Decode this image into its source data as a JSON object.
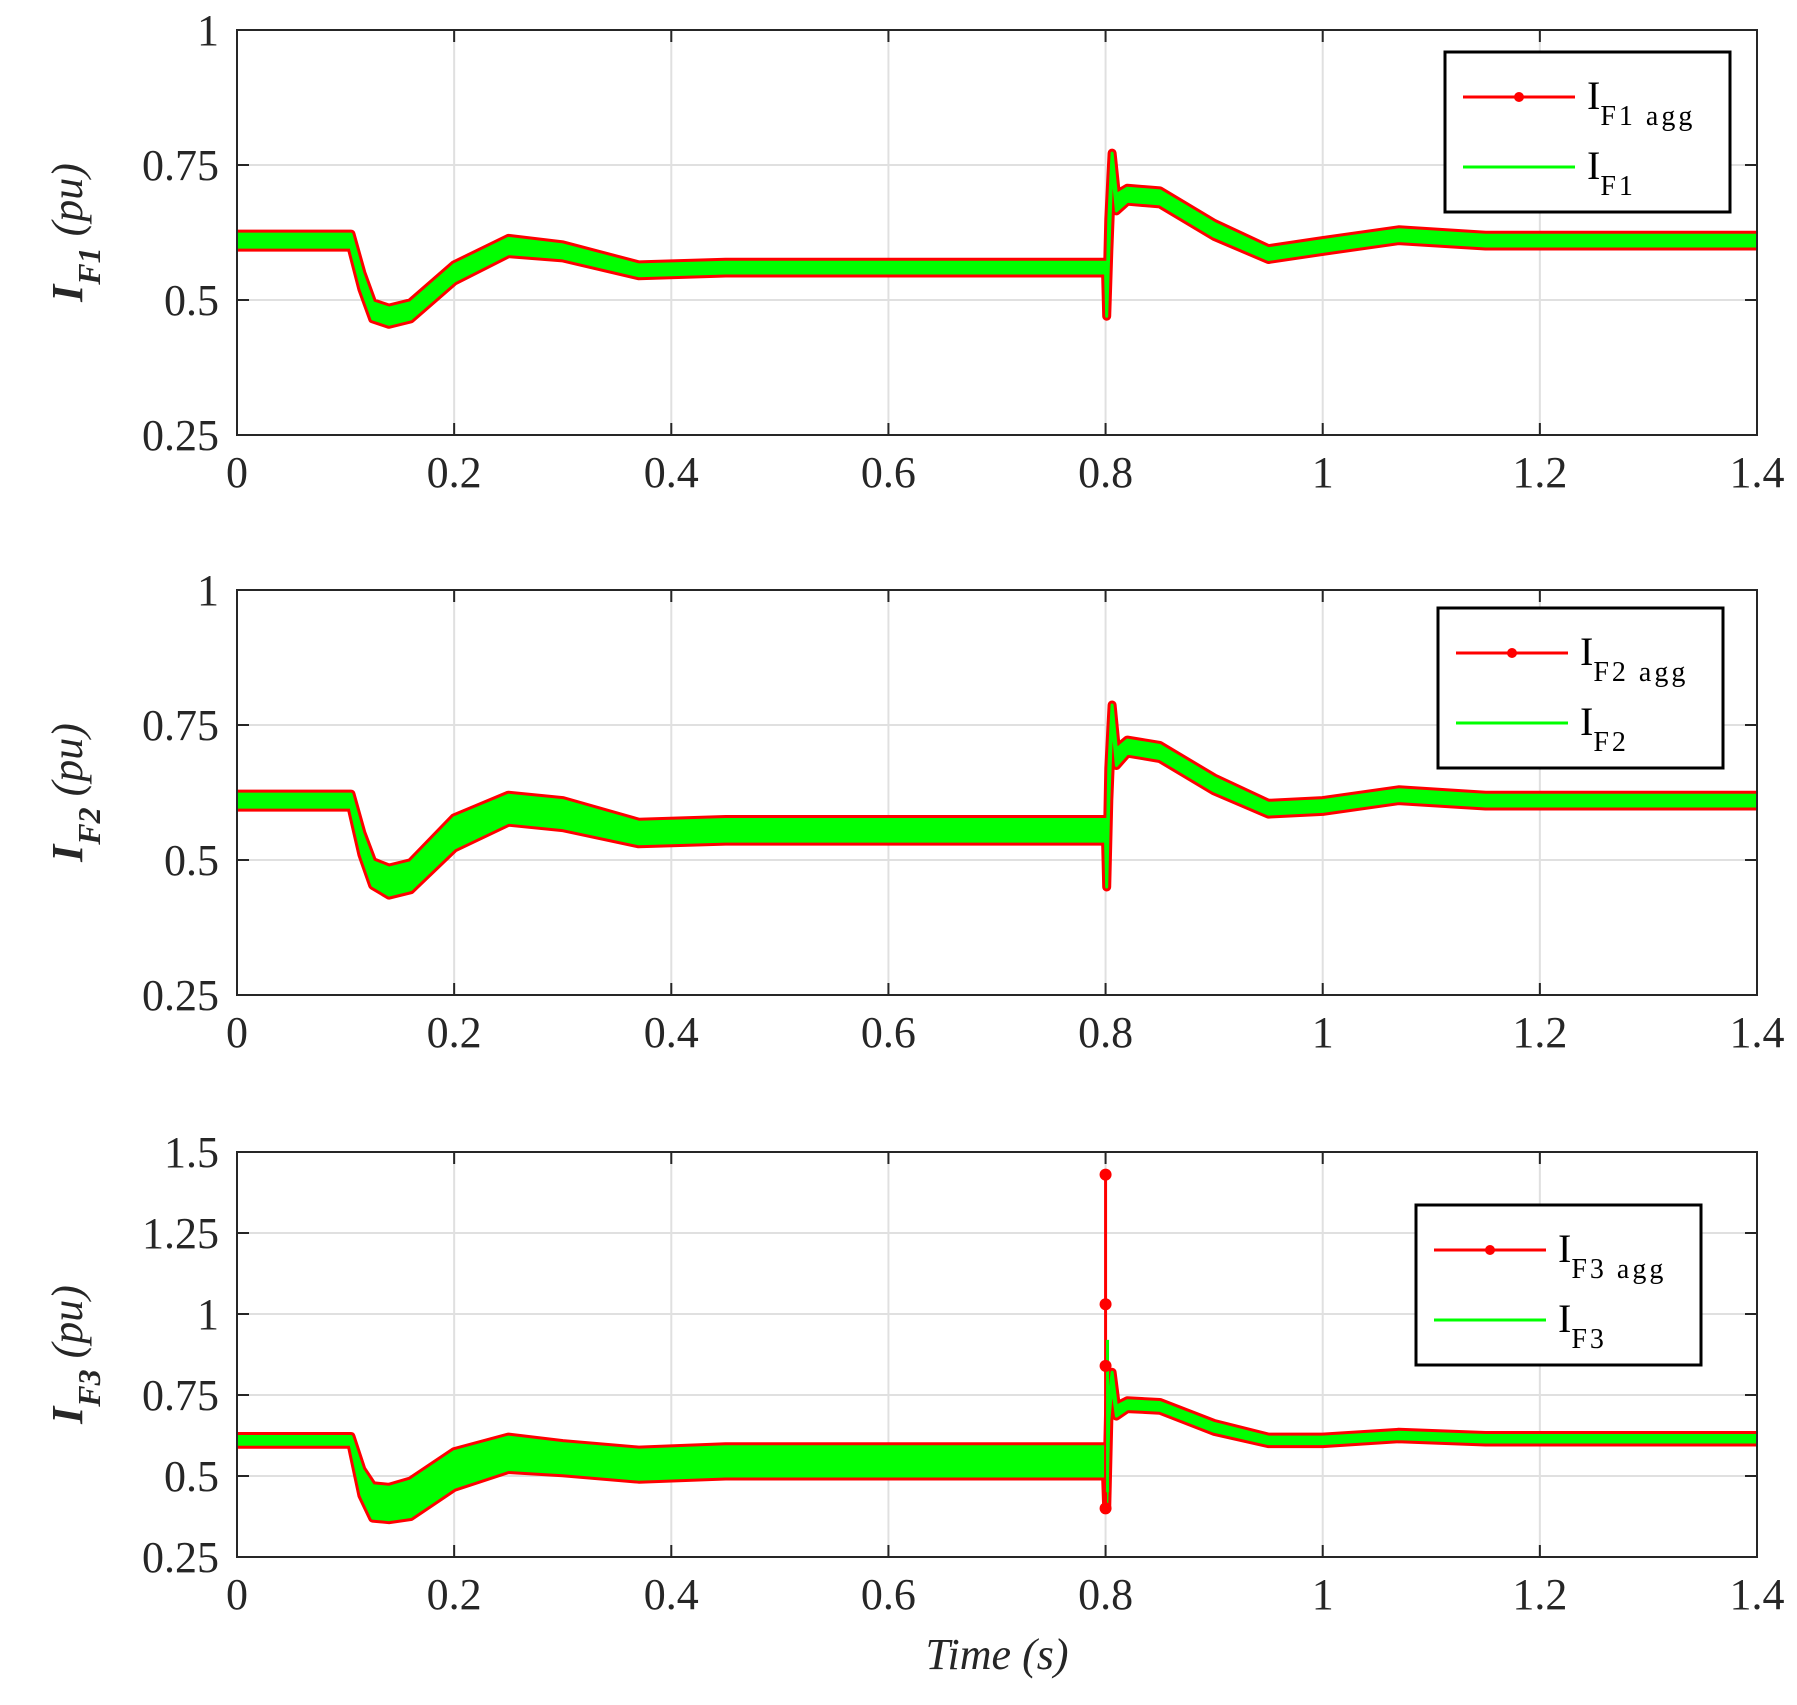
{
  "chart_data": [
    {
      "type": "line",
      "ylabel_main": "I",
      "ylabel_sub": "F1",
      "ylabel_unit": " (pu)",
      "xlabel": "",
      "xlim": [
        0,
        1.4
      ],
      "ylim": [
        0.25,
        1
      ],
      "xticks": [
        0,
        0.2,
        0.4,
        0.6,
        0.8,
        1,
        1.2,
        1.4
      ],
      "xtick_labels": [
        "0",
        "0.2",
        "0.4",
        "0.6",
        "0.8",
        "1",
        "1.2",
        "1.4"
      ],
      "yticks": [
        0.25,
        0.5,
        0.75,
        1
      ],
      "ytick_labels": [
        "0.25",
        "0.5",
        "0.75",
        "1"
      ],
      "grid": true,
      "legend_position": "top-right",
      "series": [
        {
          "name_main": "I",
          "name_sub": "F1 agg",
          "color": "#ff0000",
          "marker": "dot"
        },
        {
          "name_main": "I",
          "name_sub": "F1",
          "color": "#00ff00",
          "marker": "none"
        }
      ],
      "x": [
        0,
        0.1,
        0.105,
        0.115,
        0.125,
        0.14,
        0.16,
        0.2,
        0.25,
        0.3,
        0.37,
        0.45,
        0.6,
        0.8,
        0.801,
        0.803,
        0.806,
        0.81,
        0.82,
        0.85,
        0.9,
        0.95,
        1.0,
        1.07,
        1.15,
        1.25,
        1.4
      ],
      "y": [
        0.61,
        0.61,
        0.61,
        0.535,
        0.48,
        0.47,
        0.48,
        0.55,
        0.6,
        0.59,
        0.555,
        0.56,
        0.56,
        0.56,
        0.48,
        0.62,
        0.76,
        0.68,
        0.695,
        0.69,
        0.63,
        0.585,
        0.6,
        0.62,
        0.61,
        0.61,
        0.61
      ],
      "envelope": [
        0.012,
        0.012,
        0.012,
        0.015,
        0.015,
        0.015,
        0.015,
        0.015,
        0.014,
        0.012,
        0.01,
        0.01,
        0.01,
        0.01,
        0.01,
        0.03,
        0.012,
        0.015,
        0.012,
        0.012,
        0.012,
        0.01,
        0.01,
        0.01,
        0.01,
        0.01,
        0.01
      ]
    },
    {
      "type": "line",
      "ylabel_main": "I",
      "ylabel_sub": "F2",
      "ylabel_unit": " (pu)",
      "xlabel": "",
      "xlim": [
        0,
        1.4
      ],
      "ylim": [
        0.25,
        1
      ],
      "xticks": [
        0,
        0.2,
        0.4,
        0.6,
        0.8,
        1,
        1.2,
        1.4
      ],
      "xtick_labels": [
        "0",
        "0.2",
        "0.4",
        "0.6",
        "0.8",
        "1",
        "1.2",
        "1.4"
      ],
      "yticks": [
        0.25,
        0.5,
        0.75,
        1
      ],
      "ytick_labels": [
        "0.25",
        "0.5",
        "0.75",
        "1"
      ],
      "grid": true,
      "legend_position": "top-right",
      "series": [
        {
          "name_main": "I",
          "name_sub": "F2 agg",
          "color": "#ff0000",
          "marker": "dot"
        },
        {
          "name_main": "I",
          "name_sub": "F2",
          "color": "#00ff00",
          "marker": "none"
        }
      ],
      "x": [
        0,
        0.1,
        0.105,
        0.115,
        0.125,
        0.14,
        0.16,
        0.2,
        0.25,
        0.3,
        0.37,
        0.45,
        0.6,
        0.8,
        0.801,
        0.803,
        0.806,
        0.81,
        0.82,
        0.85,
        0.9,
        0.95,
        1.0,
        1.07,
        1.15,
        1.25,
        1.4
      ],
      "y": [
        0.61,
        0.61,
        0.61,
        0.53,
        0.475,
        0.46,
        0.47,
        0.55,
        0.595,
        0.585,
        0.55,
        0.555,
        0.555,
        0.555,
        0.46,
        0.64,
        0.775,
        0.69,
        0.71,
        0.7,
        0.64,
        0.595,
        0.6,
        0.62,
        0.61,
        0.61,
        0.61
      ],
      "envelope": [
        0.012,
        0.012,
        0.012,
        0.02,
        0.022,
        0.025,
        0.025,
        0.028,
        0.025,
        0.025,
        0.02,
        0.02,
        0.02,
        0.02,
        0.01,
        0.03,
        0.012,
        0.015,
        0.012,
        0.012,
        0.012,
        0.01,
        0.01,
        0.01,
        0.01,
        0.01,
        0.01
      ]
    },
    {
      "type": "line",
      "ylabel_main": "I",
      "ylabel_sub": "F3",
      "ylabel_unit": " (pu)",
      "xlabel": "Time (s)",
      "xlim": [
        0,
        1.4
      ],
      "ylim": [
        0.25,
        1.5
      ],
      "xticks": [
        0,
        0.2,
        0.4,
        0.6,
        0.8,
        1,
        1.2,
        1.4
      ],
      "xtick_labels": [
        "0",
        "0.2",
        "0.4",
        "0.6",
        "0.8",
        "1",
        "1.2",
        "1.4"
      ],
      "yticks": [
        0.25,
        0.5,
        0.75,
        1,
        1.25,
        1.5
      ],
      "ytick_labels": [
        "0.25",
        "0.5",
        "0.75",
        "1",
        "1.25",
        "1.5"
      ],
      "grid": true,
      "legend_position": "top-right",
      "series": [
        {
          "name_main": "I",
          "name_sub": "F3 agg",
          "color": "#ff0000",
          "marker": "dot"
        },
        {
          "name_main": "I",
          "name_sub": "F3",
          "color": "#00ff00",
          "marker": "none"
        }
      ],
      "x": [
        0,
        0.1,
        0.105,
        0.115,
        0.125,
        0.14,
        0.16,
        0.2,
        0.25,
        0.3,
        0.37,
        0.45,
        0.6,
        0.8,
        0.801,
        0.803,
        0.806,
        0.81,
        0.82,
        0.85,
        0.9,
        0.95,
        1.0,
        1.07,
        1.15,
        1.25,
        1.4
      ],
      "y": [
        0.61,
        0.61,
        0.61,
        0.48,
        0.42,
        0.415,
        0.43,
        0.52,
        0.57,
        0.555,
        0.535,
        0.545,
        0.545,
        0.545,
        0.42,
        0.7,
        0.8,
        0.7,
        0.72,
        0.715,
        0.65,
        0.61,
        0.61,
        0.625,
        0.615,
        0.615,
        0.615
      ],
      "envelope": [
        0.012,
        0.012,
        0.012,
        0.04,
        0.05,
        0.05,
        0.055,
        0.055,
        0.05,
        0.045,
        0.045,
        0.045,
        0.045,
        0.045,
        0.02,
        0.03,
        0.02,
        0.015,
        0.012,
        0.012,
        0.012,
        0.01,
        0.01,
        0.01,
        0.01,
        0.01,
        0.01
      ],
      "spike": {
        "x": 0.8,
        "points": [
          1.43,
          1.03,
          0.84,
          0.4
        ]
      }
    }
  ]
}
